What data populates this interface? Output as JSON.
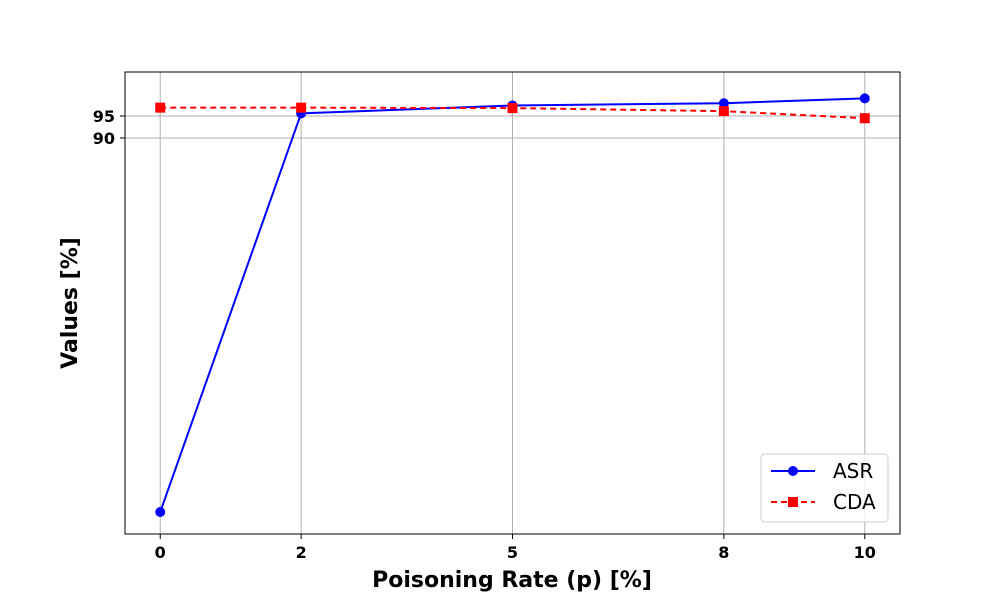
{
  "chart_data": {
    "type": "line",
    "title": "",
    "xlabel": "Poisoning Rate (p) [%]",
    "ylabel": "Values [%]",
    "x": [
      0,
      2,
      5,
      8,
      10
    ],
    "xticks": [
      0,
      2,
      5,
      8,
      10
    ],
    "yticks": [
      90,
      95
    ],
    "xlim": [
      -0.5,
      10.5
    ],
    "ylim": [
      0,
      105
    ],
    "grid": true,
    "legend_position": "bottom-right",
    "series": [
      {
        "name": "ASR",
        "values": [
          5.0,
          95.6,
          97.4,
          97.9,
          99.0
        ],
        "color": "#0000ff",
        "linestyle": "solid",
        "marker": "circle"
      },
      {
        "name": "CDA",
        "values": [
          96.9,
          96.9,
          96.8,
          96.1,
          94.5
        ],
        "color": "#ff0000",
        "linestyle": "dashed",
        "marker": "square"
      }
    ]
  }
}
